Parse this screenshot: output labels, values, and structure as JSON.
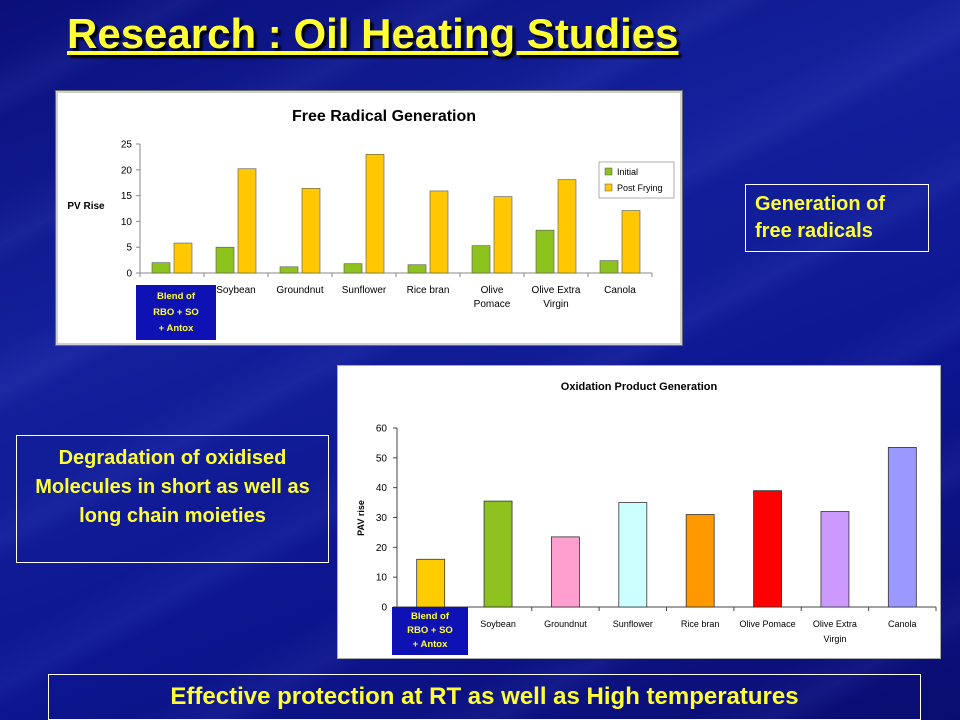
{
  "slide": {
    "title": "Research : Oil Heating Studies",
    "callout_top": "Generation of free radicals",
    "callout_left": "Degradation of oxidised Molecules in short as well as long chain moieties",
    "footer": "Effective protection at RT as well as High temperatures",
    "blend_label_lines": [
      "Blend of",
      "RBO + SO",
      "+ Antox"
    ],
    "colors": {
      "title": "#ffff33",
      "background": "#0d1690",
      "blend_box": "#0e12b4"
    }
  },
  "chart_data": [
    {
      "type": "bar",
      "title": "Free Radical Generation",
      "ylabel": "PV Rise",
      "xlabel": "",
      "ylim": [
        0,
        25
      ],
      "yticks": [
        0,
        5,
        10,
        15,
        20,
        25
      ],
      "grid": false,
      "legend_position": "right",
      "categories": [
        [
          "Blend of",
          "RBO + SO",
          "+ Antox"
        ],
        [
          "Soybean"
        ],
        [
          "Groundnut"
        ],
        [
          "Sunflower"
        ],
        [
          "Rice bran"
        ],
        [
          "Olive",
          "Pomace"
        ],
        [
          "Olive Extra",
          "Virgin"
        ],
        [
          "Canola"
        ]
      ],
      "series": [
        {
          "name": "Initial",
          "color": "#8dc21f",
          "values": [
            2.0,
            5.0,
            1.2,
            1.8,
            1.6,
            5.3,
            8.3,
            2.4
          ]
        },
        {
          "name": "Post Frying",
          "color": "#ffc800",
          "values": [
            5.8,
            20.2,
            16.4,
            23.0,
            15.9,
            14.8,
            18.1,
            12.1
          ]
        }
      ]
    },
    {
      "type": "bar",
      "title": "Oxidation Product Generation",
      "ylabel": "PAV rise",
      "xlabel": "",
      "ylim": [
        0,
        60
      ],
      "yticks": [
        0,
        10,
        20,
        30,
        40,
        50,
        60
      ],
      "grid": false,
      "categories": [
        [
          "Blend of",
          "RBO + SO",
          "+ Antox"
        ],
        [
          "Soybean"
        ],
        [
          "Groundnut"
        ],
        [
          "Sunflower"
        ],
        [
          "Rice bran"
        ],
        [
          "Olive Pomace"
        ],
        [
          "Olive Extra",
          "Virgin"
        ],
        [
          "Canola"
        ]
      ],
      "values": [
        16,
        35.5,
        23.5,
        35,
        31,
        39,
        32,
        53.5
      ],
      "colors": [
        "#ffcc00",
        "#8dc21f",
        "#ff9fcf",
        "#ccffff",
        "#ff9900",
        "#ff0000",
        "#cc99ff",
        "#9999ff"
      ]
    }
  ]
}
